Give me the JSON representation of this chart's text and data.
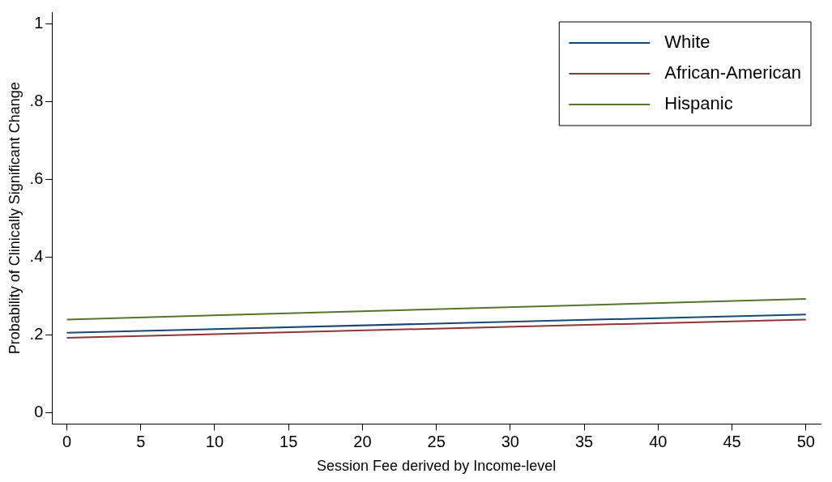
{
  "chart_data": {
    "type": "line",
    "xlabel": "Session Fee derived by Income-level",
    "ylabel": "Probability of Clinically Significant Change",
    "x": [
      0,
      50
    ],
    "series": [
      {
        "name": "White",
        "color": "#1a476f",
        "values": [
          0.205,
          0.252
        ]
      },
      {
        "name": "African-American",
        "color": "#90353b",
        "values": [
          0.192,
          0.239
        ]
      },
      {
        "name": "Hispanic",
        "color": "#55752f",
        "values": [
          0.239,
          0.292
        ]
      }
    ],
    "xlim": [
      -1,
      51
    ],
    "xticks": [
      0,
      5,
      10,
      15,
      20,
      25,
      30,
      35,
      40,
      45,
      50
    ],
    "ylim": [
      -0.03,
      1.03
    ],
    "yticks": [
      0,
      {
        "value": 0.2,
        "label": ".2"
      },
      {
        "value": 0.4,
        "label": ".4"
      },
      {
        "value": 0.6,
        "label": ".6"
      },
      {
        "value": 0.8,
        "label": ".8"
      },
      1
    ],
    "grid": false,
    "legend": "top right",
    "marker": "none",
    "line_style": "solid"
  }
}
